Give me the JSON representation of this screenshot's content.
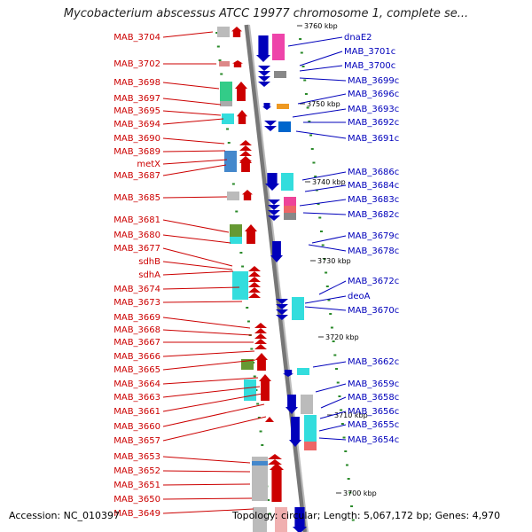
{
  "title": "Mycobacterium abscessus ATCC 19977 chromosome 1, complete se...",
  "accession": "Accession: NC_010397",
  "topology": "Topology: circular; Length: 5,067,172 bp; Genes: 4,970",
  "colors": {
    "forward": "#cc0000",
    "reverse": "#0000bb"
  },
  "scale_marks": [
    {
      "label": "3760 kbp"
    },
    {
      "label": "3750 kbp"
    },
    {
      "label": "3740 kbp"
    },
    {
      "label": "3730 kbp"
    },
    {
      "label": "3720 kbp"
    },
    {
      "label": "3710 kbp"
    },
    {
      "label": "3700 kbp"
    }
  ],
  "left_labels": [
    "MAB_3704",
    "MAB_3702",
    "MAB_3698",
    "MAB_3697",
    "MAB_3695",
    "MAB_3694",
    "MAB_3690",
    "MAB_3689",
    "metX",
    "MAB_3687",
    "MAB_3685",
    "MAB_3681",
    "MAB_3680",
    "MAB_3677",
    "sdhB",
    "sdhA",
    "MAB_3674",
    "MAB_3673",
    "MAB_3669",
    "MAB_3668",
    "MAB_3667",
    "MAB_3666",
    "MAB_3665",
    "MAB_3664",
    "MAB_3663",
    "MAB_3661",
    "MAB_3660",
    "MAB_3657",
    "MAB_3653",
    "MAB_3652",
    "MAB_3651",
    "MAB_3650",
    "MAB_3649"
  ],
  "right_labels": [
    "dnaE2",
    "MAB_3701c",
    "MAB_3700c",
    "MAB_3699c",
    "MAB_3696c",
    "MAB_3693c",
    "MAB_3692c",
    "MAB_3691c",
    "MAB_3686c",
    "MAB_3684c",
    "MAB_3683c",
    "MAB_3682c",
    "MAB_3679c",
    "MAB_3678c",
    "MAB_3672c",
    "deoA",
    "MAB_3670c",
    "MAB_3662c",
    "MAB_3659c",
    "MAB_3658c",
    "MAB_3656c",
    "MAB_3655c",
    "MAB_3654c"
  ]
}
